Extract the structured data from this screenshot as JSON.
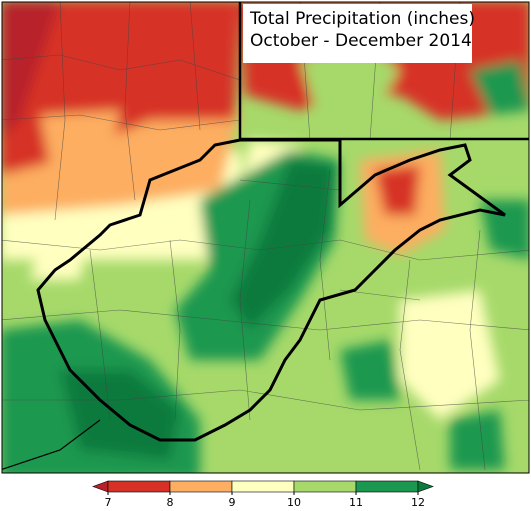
{
  "map": {
    "title": "Total Precipitation (inches)",
    "subtitle": "October - December 2014",
    "legend": {
      "ticks": [
        7,
        8,
        9,
        10,
        11,
        12
      ],
      "colors": [
        "#b8202a",
        "#d73027",
        "#fdae61",
        "#ffffbf",
        "#a6d96a",
        "#1a9850",
        "#0b7a3c"
      ]
    }
  }
}
